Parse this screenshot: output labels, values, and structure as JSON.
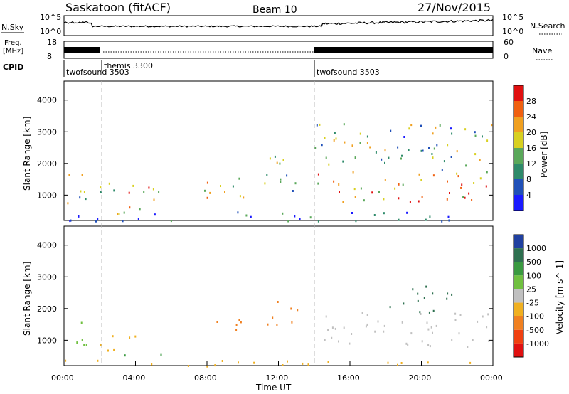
{
  "header": {
    "radar": "Saskatoon (fitACF)",
    "beam": "Beam 10",
    "date": "27/Nov/2015"
  },
  "strips": {
    "nsky_label": "N.Sky",
    "nsky_ticks": [
      "10^5",
      "10^0"
    ],
    "nsearch_label": "N.Search",
    "nsearch_ticks": [
      "10^5",
      "10^0"
    ],
    "freq_label_1": "Freq.",
    "freq_label_2": "[MHz]",
    "freq_ticks": [
      "18",
      "8"
    ],
    "nave_label": "Nave",
    "nave_ticks": [
      "60",
      "0"
    ],
    "cpid_label": "CPID",
    "cpid_segments": [
      {
        "name": "twofsound 3503",
        "start_hour": 0
      },
      {
        "name": "themis 3300",
        "start_hour": 2.0
      },
      {
        "name": "twofsound 3503",
        "start_hour": 14.0
      }
    ]
  },
  "chart_data": [
    {
      "type": "heatmap",
      "panel": "power",
      "ylabel": "Slant Range [km]",
      "yticks": [
        "1000",
        "2000",
        "3000",
        "4000"
      ],
      "ylim": [
        200,
        4600
      ],
      "xlim": [
        0,
        24
      ],
      "colorbar_label": "Power [dB]",
      "colorbar_ticks": [
        "4",
        "8",
        "12",
        "16",
        "20",
        "24",
        "28"
      ],
      "colorbar_colors": [
        "#1a1aff",
        "#2050b8",
        "#2e8a6a",
        "#5aa85a",
        "#d8d020",
        "#f0a020",
        "#f06010",
        "#e01010"
      ],
      "scatter_regions": [
        {
          "x": [
            0.1,
            1.6
          ],
          "range": [
            600,
            1700
          ],
          "level": 0.45
        },
        {
          "x": [
            1.9,
            5.8
          ],
          "range": [
            600,
            1400
          ],
          "level": 0.6
        },
        {
          "x": [
            2.5,
            5.5
          ],
          "range": [
            400,
            700
          ],
          "level": 0.65
        },
        {
          "x": [
            7.8,
            10.2
          ],
          "range": [
            900,
            1900
          ],
          "level": 0.55
        },
        {
          "x": [
            11.0,
            13.2
          ],
          "range": [
            900,
            2300
          ],
          "level": 0.45
        },
        {
          "x": [
            14.0,
            24.0
          ],
          "range": [
            800,
            1800
          ],
          "level": 0.7
        },
        {
          "x": [
            14.0,
            24.0
          ],
          "range": [
            1800,
            3300
          ],
          "level": 0.4
        },
        {
          "x": [
            0.0,
            24.0
          ],
          "range": [
            200,
            500
          ],
          "level": 0.25
        }
      ]
    },
    {
      "type": "heatmap",
      "panel": "velocity",
      "ylabel": "Slant Range [km]",
      "yticks": [
        "1000",
        "2000",
        "3000",
        "4000"
      ],
      "ylim": [
        200,
        4600
      ],
      "xlim": [
        0,
        24
      ],
      "xlabel": "Time UT",
      "xticks": [
        "00:00",
        "04:00",
        "08:00",
        "12:00",
        "16:00",
        "20:00",
        "00:00"
      ],
      "colorbar_label": "Velocity [m s^-1]",
      "colorbar_ticks": [
        "1000",
        "500",
        "100",
        "25",
        "-25",
        "-100",
        "-500",
        "-1000"
      ],
      "colorbar_colors": [
        "#2040a0",
        "#2e7050",
        "#3a9a40",
        "#70c040",
        "#c0c0c0",
        "#f0b020",
        "#f08020",
        "#f04010",
        "#e01010"
      ],
      "scatter_regions": [
        {
          "x": [
            0.1,
            1.6
          ],
          "range": [
            700,
            1600
          ],
          "color": "#70c040"
        },
        {
          "x": [
            1.9,
            4.5
          ],
          "range": [
            600,
            1200
          ],
          "color": "#f0b020"
        },
        {
          "x": [
            3.0,
            5.5
          ],
          "range": [
            400,
            600
          ],
          "color": "#3a9a40"
        },
        {
          "x": [
            8.5,
            10.2
          ],
          "range": [
            1200,
            1900
          ],
          "color": "#f08020"
        },
        {
          "x": [
            11.0,
            13.2
          ],
          "range": [
            1500,
            2300
          ],
          "color": "#f08020"
        },
        {
          "x": [
            14.2,
            24.0
          ],
          "range": [
            800,
            1900
          ],
          "color": "#c0c0c0"
        },
        {
          "x": [
            18.0,
            22.0
          ],
          "range": [
            1900,
            2800
          ],
          "color": "#2e7050"
        },
        {
          "x": [
            0.0,
            24.0
          ],
          "range": [
            200,
            400
          ],
          "color": "#f0b020"
        }
      ]
    }
  ]
}
